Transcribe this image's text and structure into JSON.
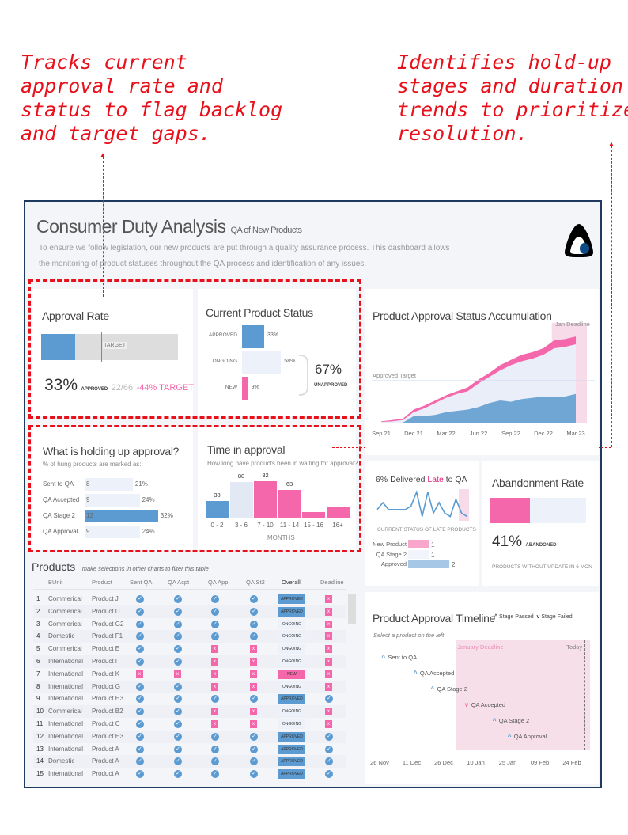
{
  "annotations": {
    "left": "Tracks current\napproval rate and\nstatus to flag backlog\nand target gaps.",
    "right": "Identifies hold-up\nstages and duration\ntrends to prioritize\nresolution."
  },
  "header": {
    "title": "Consumer Duty Analysis",
    "subtitle": "QA of New Products",
    "description_1": "To ensure we follow legislation, our new products are put through a quality assurance process. This dashboard allows",
    "description_2": "the monitoring of product statuses throughout the QA process and identification of any issues.",
    "logo": "logo-icon"
  },
  "colors": {
    "blue": "#5b9bd1",
    "pink": "#f467ab",
    "light": "#edf1f9",
    "frame": "#1f3a5f",
    "annotation": "#e8101a"
  },
  "approval_rate": {
    "title": "Approval Rate",
    "approved_fraction": 0.33,
    "target_fraction": 0.44,
    "target_label": "TARGET",
    "value": "33%",
    "value_label": "APPROVED",
    "count": "22/66",
    "gap": "-44% TARGET"
  },
  "current_status": {
    "title": "Current Product Status",
    "items": [
      {
        "label": "APPROVED",
        "value": 33,
        "text": "33%"
      },
      {
        "label": "ONGOING",
        "value": 58,
        "text": "58%"
      },
      {
        "label": "NEW",
        "value": 9,
        "text": "9%"
      }
    ],
    "unapproved": "67%",
    "unapproved_label": "UNAPPROVED"
  },
  "holding": {
    "title": "What is holding up approval?",
    "subtitle": "% of hung products are marked as:",
    "items": [
      {
        "label": "Sent to QA",
        "count": "8",
        "pct": "21%",
        "value": 21
      },
      {
        "label": "QA Accepted",
        "count": "9",
        "pct": "24%",
        "value": 24
      },
      {
        "label": "QA Stage 2",
        "count": "12",
        "pct": "32%",
        "value": 32
      },
      {
        "label": "QA Approval",
        "count": "9",
        "pct": "24%",
        "value": 24
      }
    ]
  },
  "time_in_approval": {
    "title": "Time in approval",
    "subtitle": "How long have products been in waiting for approval?",
    "xlabel": "MONTHS",
    "bars": [
      {
        "cat": "0 - 2",
        "value": 38,
        "label": "38"
      },
      {
        "cat": "3 - 6",
        "value": 80,
        "label": "80"
      },
      {
        "cat": "7 - 10",
        "value": 82,
        "label": "82"
      },
      {
        "cat": "11 - 14",
        "value": 63,
        "label": "63"
      },
      {
        "cat": "15 - 16",
        "value": 14,
        "label": ""
      },
      {
        "cat": "16+",
        "value": 24,
        "label": ""
      }
    ]
  },
  "chart_data": [
    {
      "type": "area",
      "title": "Product Approval Status Accumulation",
      "x": [
        "Sep 21",
        "Oct 21",
        "Nov 21",
        "Dec 21",
        "Jan 22",
        "Feb 22",
        "Mar 22",
        "Apr 22",
        "May 22",
        "Jun 22",
        "Jul 22",
        "Aug 22",
        "Sep 22",
        "Oct 22",
        "Nov 22",
        "Dec 22",
        "Jan 23",
        "Feb 23",
        "Mar 23"
      ],
      "xticks": [
        "Sep 21",
        "Dec 21",
        "Mar 22",
        "Jun 22",
        "Sep 22",
        "Dec 22",
        "Mar 23"
      ],
      "series": [
        {
          "values": [
            1,
            2,
            3,
            10,
            13,
            17,
            21,
            24,
            27,
            33,
            38,
            44,
            48,
            52,
            54,
            57,
            63,
            64,
            66
          ]
        },
        {
          "values": [
            0.5,
            1,
            1,
            2,
            2,
            2,
            2,
            2,
            3,
            3,
            3,
            4,
            4,
            5,
            5,
            5,
            6,
            6,
            6
          ]
        },
        {
          "values": [
            0,
            0,
            0,
            5,
            5,
            6,
            8,
            9,
            10,
            12,
            15,
            17,
            16,
            18,
            19,
            20,
            20,
            20,
            22
          ]
        }
      ],
      "target": 32,
      "target_label": "Approved Target",
      "deadline_label": "Jan Deadline",
      "deadline_from": "Jan 23"
    },
    {
      "type": "line",
      "title_pre": "6% Delivered ",
      "title_hl": "Late",
      "title_post": " to QA",
      "values": [
        3,
        5,
        3,
        3,
        3,
        3,
        4,
        8,
        1,
        8,
        2,
        5,
        2,
        1,
        6,
        2,
        1
      ]
    },
    {
      "type": "bar",
      "title": "CURRENT STATUS OF LATE PRODUCTS",
      "categories": [
        "New Product",
        "QA Stage 2",
        "Approved"
      ],
      "values": [
        1,
        1,
        2
      ]
    }
  ],
  "abandonment": {
    "title": "Abandonment Rate",
    "fraction": 0.41,
    "value": "41%",
    "value_label": "ABANDONED",
    "footer": "PRODUCTS WITHOUT UPDATE IN 6 MON"
  },
  "products": {
    "title": "Products",
    "hint": "make selections in other charts to filter this table",
    "columns": [
      "BUnit",
      "Product",
      "Sent QA",
      "QA Acpt",
      "QA App",
      "QA St2",
      "Overall",
      "Deadline"
    ],
    "rows": [
      [
        "1",
        "Commerical",
        "Product J",
        "pass",
        "pass",
        "pass",
        "pass",
        "APPROVED",
        "fail"
      ],
      [
        "2",
        "Commerical",
        "Product D",
        "pass",
        "pass",
        "pass",
        "pass",
        "APPROVED",
        "fail"
      ],
      [
        "3",
        "Commerical",
        "Product G2",
        "pass",
        "pass",
        "pass",
        "pass",
        "ONGOING",
        "fail"
      ],
      [
        "4",
        "Domestic",
        "Product F1",
        "pass",
        "pass",
        "pass",
        "pass",
        "ONGOING",
        "fail"
      ],
      [
        "5",
        "Commerical",
        "Product E",
        "pass",
        "pass",
        "fail",
        "fail",
        "ONGOING",
        "fail"
      ],
      [
        "6",
        "International",
        "Product I",
        "pass",
        "pass",
        "fail",
        "fail",
        "ONGOING",
        "fail"
      ],
      [
        "7",
        "International",
        "Product K",
        "fail",
        "fail",
        "fail",
        "fail",
        "NEW",
        "fail"
      ],
      [
        "8",
        "International",
        "Product G",
        "pass",
        "pass",
        "fail",
        "fail",
        "ONGOING",
        "fail"
      ],
      [
        "9",
        "International",
        "Product H3",
        "pass",
        "pass",
        "pass",
        "pass",
        "APPROVED",
        "pass"
      ],
      [
        "10",
        "Commerical",
        "Product B2",
        "pass",
        "pass",
        "fail",
        "fail",
        "ONGOING",
        "fail"
      ],
      [
        "11",
        "International",
        "Product C",
        "pass",
        "pass",
        "fail",
        "fail",
        "ONGOING",
        "fail"
      ],
      [
        "12",
        "International",
        "Product H3",
        "pass",
        "pass",
        "pass",
        "pass",
        "APPROVED",
        "pass"
      ],
      [
        "13",
        "International",
        "Product A",
        "pass",
        "pass",
        "pass",
        "pass",
        "APPROVED",
        "pass"
      ],
      [
        "14",
        "Domestic",
        "Product A",
        "pass",
        "pass",
        "pass",
        "pass",
        "APPROVED",
        "pass"
      ],
      [
        "15",
        "International",
        "Product A",
        "pass",
        "pass",
        "pass",
        "pass",
        "APPROVED",
        "pass"
      ]
    ]
  },
  "timeline": {
    "title": "Product Approval Timeline",
    "legend_passed": "Stage Passed",
    "legend_failed": "Stage Failed",
    "subtitle": "Select a product on the left",
    "deadline_label": "January Deadline",
    "today_label": "Today",
    "deadline_date": "2023-01-01",
    "today_date": "2023-03-02",
    "ticks": [
      {
        "label": "26 Nov",
        "date": "2022-11-26"
      },
      {
        "label": "11 Dec",
        "date": "2022-12-11"
      },
      {
        "label": "26 Dec",
        "date": "2022-12-26"
      },
      {
        "label": "10 Jan",
        "date": "2023-01-10"
      },
      {
        "label": "25 Jan",
        "date": "2023-01-25"
      },
      {
        "label": "09 Feb",
        "date": "2023-02-09"
      },
      {
        "label": "24 Feb",
        "date": "2023-02-24"
      }
    ],
    "events": [
      {
        "label": "Sent to QA",
        "date": "2022-11-28",
        "status": "passed"
      },
      {
        "label": "QA Accepted",
        "date": "2022-12-13",
        "status": "passed"
      },
      {
        "label": "QA Stage 2",
        "date": "2022-12-21",
        "status": "passed"
      },
      {
        "label": "QA Accepted",
        "date": "2023-01-06",
        "status": "failed"
      },
      {
        "label": "QA Stage 2",
        "date": "2023-01-19",
        "status": "passed"
      },
      {
        "label": "QA Approval",
        "date": "2023-01-26",
        "status": "passed"
      }
    ]
  }
}
